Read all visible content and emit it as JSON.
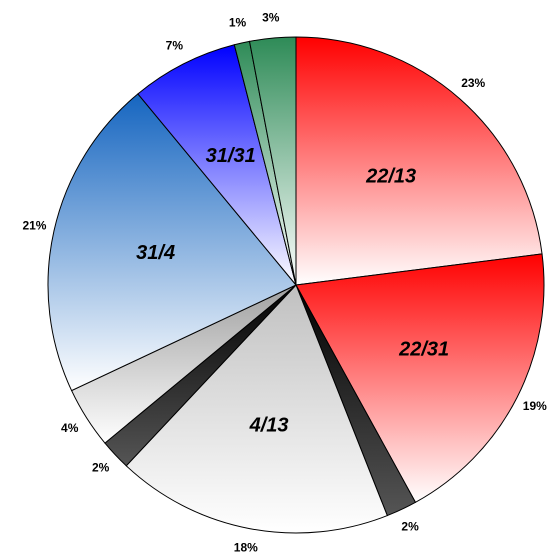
{
  "chart_data": {
    "type": "pie",
    "categories": [
      "22/13",
      "22/31",
      null,
      "4/13",
      null,
      null,
      "31/4",
      "31/31",
      null,
      null
    ],
    "values": [
      23,
      19,
      2,
      18,
      2,
      4,
      21,
      7,
      1,
      3
    ],
    "value_labels": [
      "23%",
      "19%",
      "2%",
      "18%",
      "2%",
      "4%",
      "21%",
      "7%",
      "1%",
      "3%"
    ],
    "colors": [
      "#ff0000",
      "#ff0000",
      "#000000",
      "#c0c0c0",
      "#000000",
      "#a0a0a0",
      "#1565c0",
      "#0000ff",
      "#2e8b57",
      "#2e8b57"
    ]
  }
}
